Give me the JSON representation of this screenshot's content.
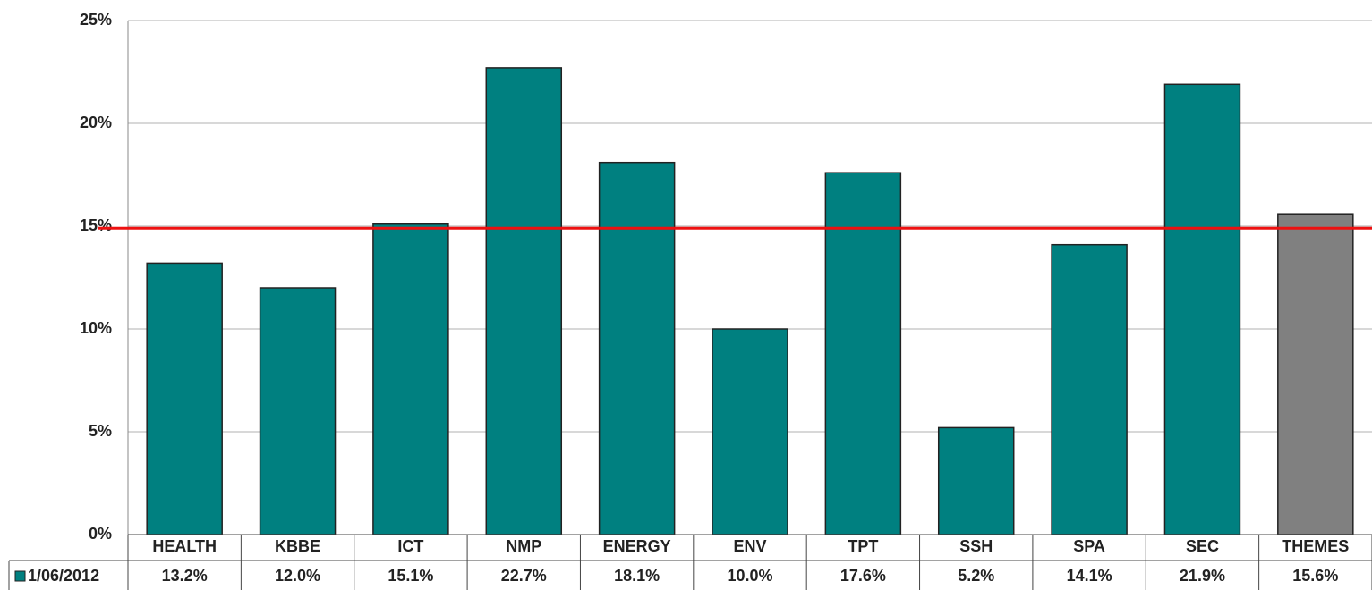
{
  "chart_data": {
    "type": "bar",
    "categories": [
      "HEALTH",
      "KBBE",
      "ICT",
      "NMP",
      "ENERGY",
      "ENV",
      "TPT",
      "SSH",
      "SPA",
      "SEC",
      "THEMES"
    ],
    "series": [
      {
        "name": "1/06/2012",
        "color": "#008080",
        "colors": [
          "#008080",
          "#008080",
          "#008080",
          "#008080",
          "#008080",
          "#008080",
          "#008080",
          "#008080",
          "#008080",
          "#008080",
          "#808080"
        ],
        "values": [
          13.2,
          12.0,
          15.1,
          22.7,
          18.1,
          10.0,
          17.6,
          5.2,
          14.1,
          21.9,
          15.6
        ],
        "value_labels": [
          "13.2%",
          "12.0%",
          "15.1%",
          "22.7%",
          "18.1%",
          "10.0%",
          "17.6%",
          "5.2%",
          "14.1%",
          "21.9%",
          "15.6%"
        ]
      }
    ],
    "ylim": [
      0,
      25
    ],
    "yticks": [
      {
        "value": 0,
        "label": "0%"
      },
      {
        "value": 5,
        "label": "5%"
      },
      {
        "value": 10,
        "label": "10%"
      },
      {
        "value": 15,
        "label": "15%"
      },
      {
        "value": 20,
        "label": "20%"
      },
      {
        "value": 25,
        "label": "25%"
      }
    ],
    "grid": true,
    "reference_line": {
      "value": 14.9,
      "color": "#ee1111"
    }
  }
}
